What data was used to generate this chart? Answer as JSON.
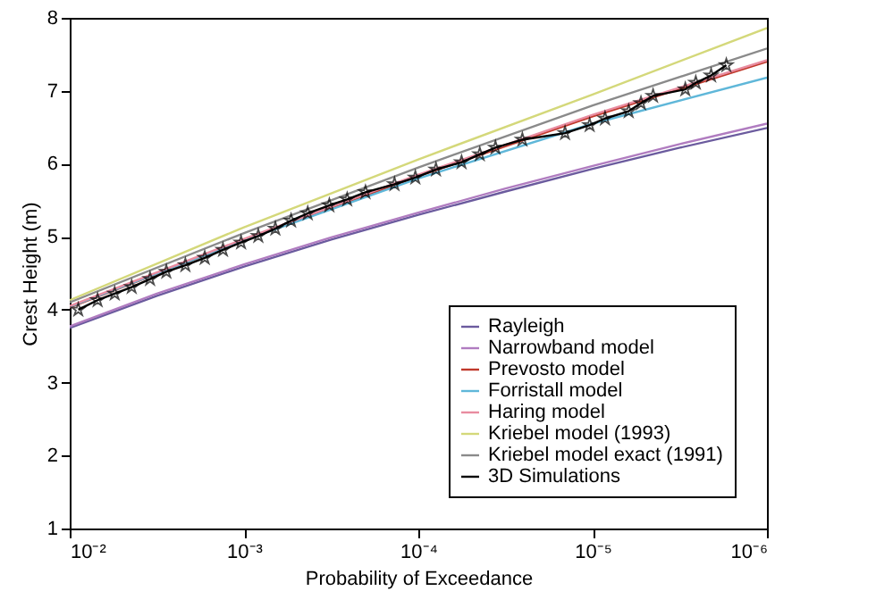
{
  "chart_data": {
    "type": "line",
    "xlabel": "Probability of Exceedance",
    "ylabel": "Crest Height (m)",
    "log": "x",
    "xlim": [
      0.01,
      1e-06
    ],
    "ylim": [
      1,
      8
    ],
    "xticks": [
      {
        "value": 0.01,
        "label": "10⁻²"
      },
      {
        "value": 0.001,
        "label": "10⁻³"
      },
      {
        "value": 0.0001,
        "label": "10⁻⁴"
      },
      {
        "value": 1e-05,
        "label": "10⁻⁵"
      },
      {
        "value": 1e-06,
        "label": "10⁻⁶"
      }
    ],
    "yticks": [
      1,
      2,
      3,
      4,
      5,
      6,
      7,
      8
    ],
    "grid": false,
    "legend": "bottom right",
    "marker": "none",
    "line_style": "solid",
    "series": [
      {
        "name": "Rayleigh",
        "color": "#6b5b9e",
        "x": [
          0.01,
          0.00316,
          0.001,
          0.000316,
          0.0001,
          3.16e-05,
          1e-05,
          3.16e-06,
          1e-06
        ],
        "values": [
          3.75,
          4.19,
          4.59,
          4.96,
          5.3,
          5.62,
          5.93,
          6.22,
          6.49
        ]
      },
      {
        "name": "Narrowband model",
        "color": "#b07cc0",
        "x": [
          0.01,
          0.00316,
          0.001,
          0.000316,
          0.0001,
          3.16e-05,
          1e-05,
          3.16e-06,
          1e-06
        ],
        "values": [
          3.77,
          4.22,
          4.62,
          4.99,
          5.33,
          5.66,
          5.97,
          6.27,
          6.55
        ]
      },
      {
        "name": "Prevosto model",
        "color": "#c0392b",
        "x": [
          0.01,
          0.001,
          0.0001,
          1e-05,
          1e-06
        ],
        "values": [
          4.03,
          4.95,
          5.83,
          6.65,
          7.4
        ]
      },
      {
        "name": "Forristall model",
        "color": "#5fb7d9",
        "x": [
          0.01,
          0.001,
          0.0001,
          1e-05,
          1e-06
        ],
        "values": [
          4.04,
          4.95,
          5.8,
          6.55,
          7.18
        ]
      },
      {
        "name": "Haring model",
        "color": "#e88ca0",
        "x": [
          0.01,
          0.001,
          0.0001,
          1e-05,
          1e-06
        ],
        "values": [
          4.05,
          4.97,
          5.85,
          6.67,
          7.42
        ]
      },
      {
        "name": "Kriebel model (1993)",
        "color": "#d4d87a",
        "x": [
          0.01,
          0.001,
          0.0001,
          1e-05,
          1e-06
        ],
        "values": [
          4.13,
          5.13,
          6.06,
          6.95,
          7.86
        ]
      },
      {
        "name": "Kriebel model exact (1991)",
        "color": "#8a8a8a",
        "x": [
          0.01,
          0.001,
          0.0001,
          1e-05,
          1e-06
        ],
        "values": [
          4.1,
          5.05,
          5.95,
          6.8,
          7.58
        ]
      },
      {
        "name": "3D Simulations",
        "color": "#000000",
        "marker": "star",
        "x": [
          0.00893,
          0.00692,
          0.00552,
          0.00441,
          0.00346,
          0.00279,
          0.00217,
          0.00168,
          0.00132,
          0.00104,
          0.000828,
          0.000661,
          0.000537,
          0.000431,
          0.000324,
          0.000256,
          0.000201,
          0.000137,
          0.000104,
          7.92e-05,
          5.65e-05,
          4.44e-05,
          3.61e-05,
          2.53e-05,
          1.44e-05,
          1.04e-05,
          8.49e-06,
          6.21e-06,
          5.28e-06,
          4.5e-06,
          2.94e-06,
          2.56e-06,
          2.09e-06,
          1.71e-06
        ],
        "values": [
          4.0,
          4.13,
          4.22,
          4.31,
          4.42,
          4.52,
          4.61,
          4.71,
          4.82,
          4.92,
          5.01,
          5.11,
          5.22,
          5.32,
          5.43,
          5.51,
          5.61,
          5.72,
          5.81,
          5.92,
          6.02,
          6.13,
          6.22,
          6.33,
          6.42,
          6.53,
          6.62,
          6.72,
          6.83,
          6.93,
          7.02,
          7.11,
          7.21,
          7.35
        ]
      }
    ]
  }
}
